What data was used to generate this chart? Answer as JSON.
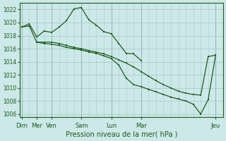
{
  "background_color": "#cce8e8",
  "grid_color": "#aacccc",
  "line_color": "#1a5c1a",
  "marker_color": "#1a5c1a",
  "xlabel": "Pression niveau de la mer( hPa )",
  "ylim": [
    1005.5,
    1023.0
  ],
  "yticks": [
    1006,
    1008,
    1010,
    1012,
    1014,
    1016,
    1018,
    1020,
    1022
  ],
  "major_xtick_positions": [
    0,
    1,
    2,
    4,
    6,
    8,
    13
  ],
  "major_xtick_labels": [
    "Dim",
    "Mer",
    "Ven",
    "Sam",
    "Lun",
    "Mar",
    "Jeu"
  ],
  "xlim": [
    -0.15,
    13.5
  ],
  "series": [
    {
      "x": [
        0,
        0.5,
        1,
        1.5,
        2,
        2.5,
        3,
        3.5,
        4,
        4.5,
        5,
        5.5,
        6,
        6.5,
        7,
        7.5,
        8
      ],
      "y": [
        1019.3,
        1019.8,
        1017.8,
        1018.7,
        1018.5,
        1019.3,
        1020.3,
        1022.1,
        1022.3,
        1020.4,
        1019.6,
        1018.6,
        1018.3,
        1016.8,
        1015.3,
        1015.2,
        1014.2
      ]
    },
    {
      "x": [
        0,
        0.5,
        1,
        1.5,
        2,
        2.5,
        3,
        3.5,
        4,
        4.5,
        5,
        5.5,
        6,
        6.5,
        7,
        7.5,
        8,
        8.5,
        9,
        9.5,
        10,
        10.5,
        11,
        11.5,
        12,
        12.5,
        13
      ],
      "y": [
        1019.3,
        1019.5,
        1017.0,
        1017.0,
        1017.0,
        1016.8,
        1016.5,
        1016.2,
        1016.0,
        1015.7,
        1015.5,
        1015.2,
        1014.8,
        1014.3,
        1013.8,
        1013.2,
        1012.5,
        1011.8,
        1011.1,
        1010.5,
        1010.0,
        1009.5,
        1009.2,
        1009.0,
        1008.9,
        1014.8,
        1015.0
      ]
    },
    {
      "x": [
        1,
        1.5,
        2,
        2.5,
        3,
        3.5,
        4,
        4.5,
        5,
        5.5,
        6,
        6.5,
        7,
        7.5,
        8,
        8.5,
        9,
        9.5,
        10,
        10.5,
        11,
        11.5,
        12,
        12.5,
        13
      ],
      "y": [
        1017.0,
        1016.8,
        1016.7,
        1016.5,
        1016.2,
        1016.0,
        1015.8,
        1015.5,
        1015.3,
        1014.9,
        1014.5,
        1013.5,
        1011.5,
        1010.5,
        1010.2,
        1009.8,
        1009.4,
        1009.0,
        1008.6,
        1008.3,
        1008.0,
        1007.5,
        1006.0,
        1008.2,
        1015.0
      ]
    }
  ]
}
